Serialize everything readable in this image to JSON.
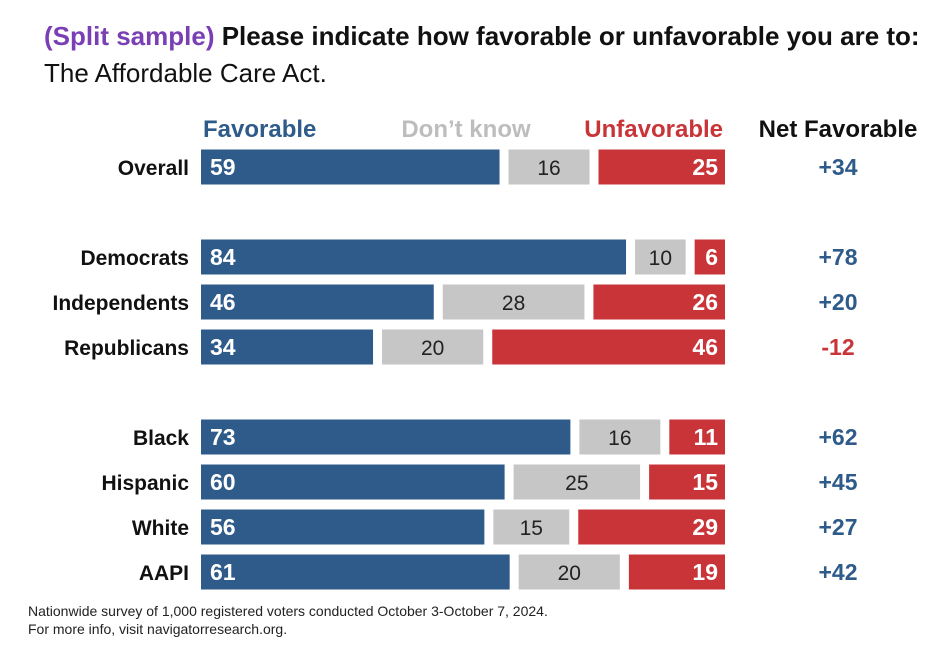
{
  "title": {
    "tag": "(Split sample)",
    "question": "Please indicate how favorable or unfavorable you are to:",
    "subject": "The Affordable Care Act."
  },
  "chart_data": {
    "type": "bar",
    "stacked": true,
    "orientation": "horizontal",
    "categories": [
      "Overall",
      "Democrats",
      "Independents",
      "Republicans",
      "Black",
      "Hispanic",
      "White",
      "AAPI"
    ],
    "groups": [
      [
        "Overall"
      ],
      [
        "Democrats",
        "Independents",
        "Republicans"
      ],
      [
        "Black",
        "Hispanic",
        "White",
        "AAPI"
      ]
    ],
    "series": [
      {
        "name": "Favorable",
        "values": [
          59,
          84,
          46,
          34,
          73,
          60,
          56,
          61
        ]
      },
      {
        "name": "Don’t know",
        "values": [
          16,
          10,
          28,
          20,
          16,
          25,
          15,
          20
        ]
      },
      {
        "name": "Unfavorable",
        "values": [
          25,
          6,
          26,
          46,
          11,
          15,
          29,
          19
        ]
      }
    ],
    "net_header": "Net Favorable",
    "net_favorable": [
      "+34",
      "+78",
      "+20",
      "-12",
      "+62",
      "+45",
      "+27",
      "+42"
    ],
    "legend_placement": "top",
    "colors": {
      "favorable": "#2e5b8a",
      "dont_know": "#c6c6c6",
      "unfavorable": "#c93438",
      "net_positive": "#2e5b8a",
      "net_negative": "#c93438",
      "legend_dont_know_text": "#bdbdbd"
    }
  },
  "footnote": {
    "line1": "Nationwide survey of 1,000 registered voters conducted October 3-October 7, 2024.",
    "line2": "For more info, visit navigatorresearch.org."
  }
}
